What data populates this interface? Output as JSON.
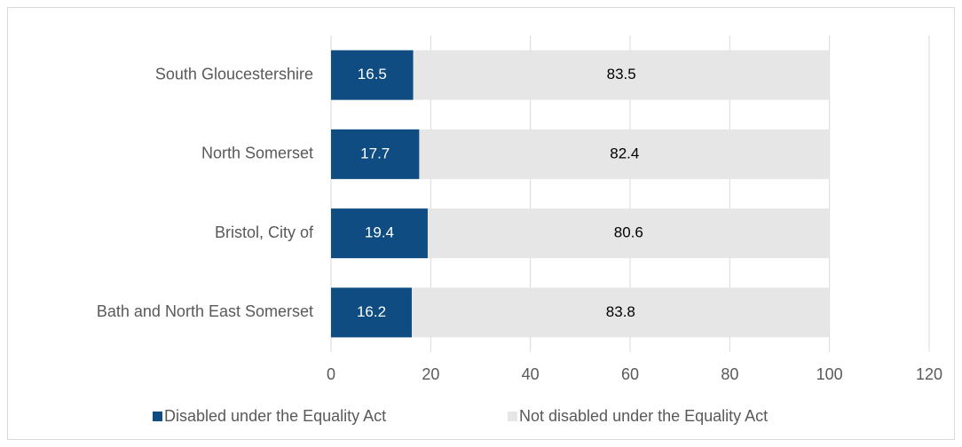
{
  "chart_data": {
    "type": "bar",
    "orientation": "horizontal",
    "stacked": true,
    "categories": [
      "South Gloucestershire",
      "North Somerset",
      "Bristol, City of",
      "Bath and North East Somerset"
    ],
    "series": [
      {
        "name": "Disabled under the Equality Act",
        "color": "#0f4c81",
        "values": [
          16.5,
          17.7,
          19.4,
          16.2
        ]
      },
      {
        "name": "Not disabled under the Equality Act",
        "color": "#e7e6e6",
        "values": [
          83.5,
          82.4,
          80.6,
          83.8
        ]
      }
    ],
    "xlim": [
      0,
      120
    ],
    "xticks": [
      0,
      20,
      40,
      60,
      80,
      100,
      120
    ],
    "grid": true,
    "legend": "bottom"
  }
}
